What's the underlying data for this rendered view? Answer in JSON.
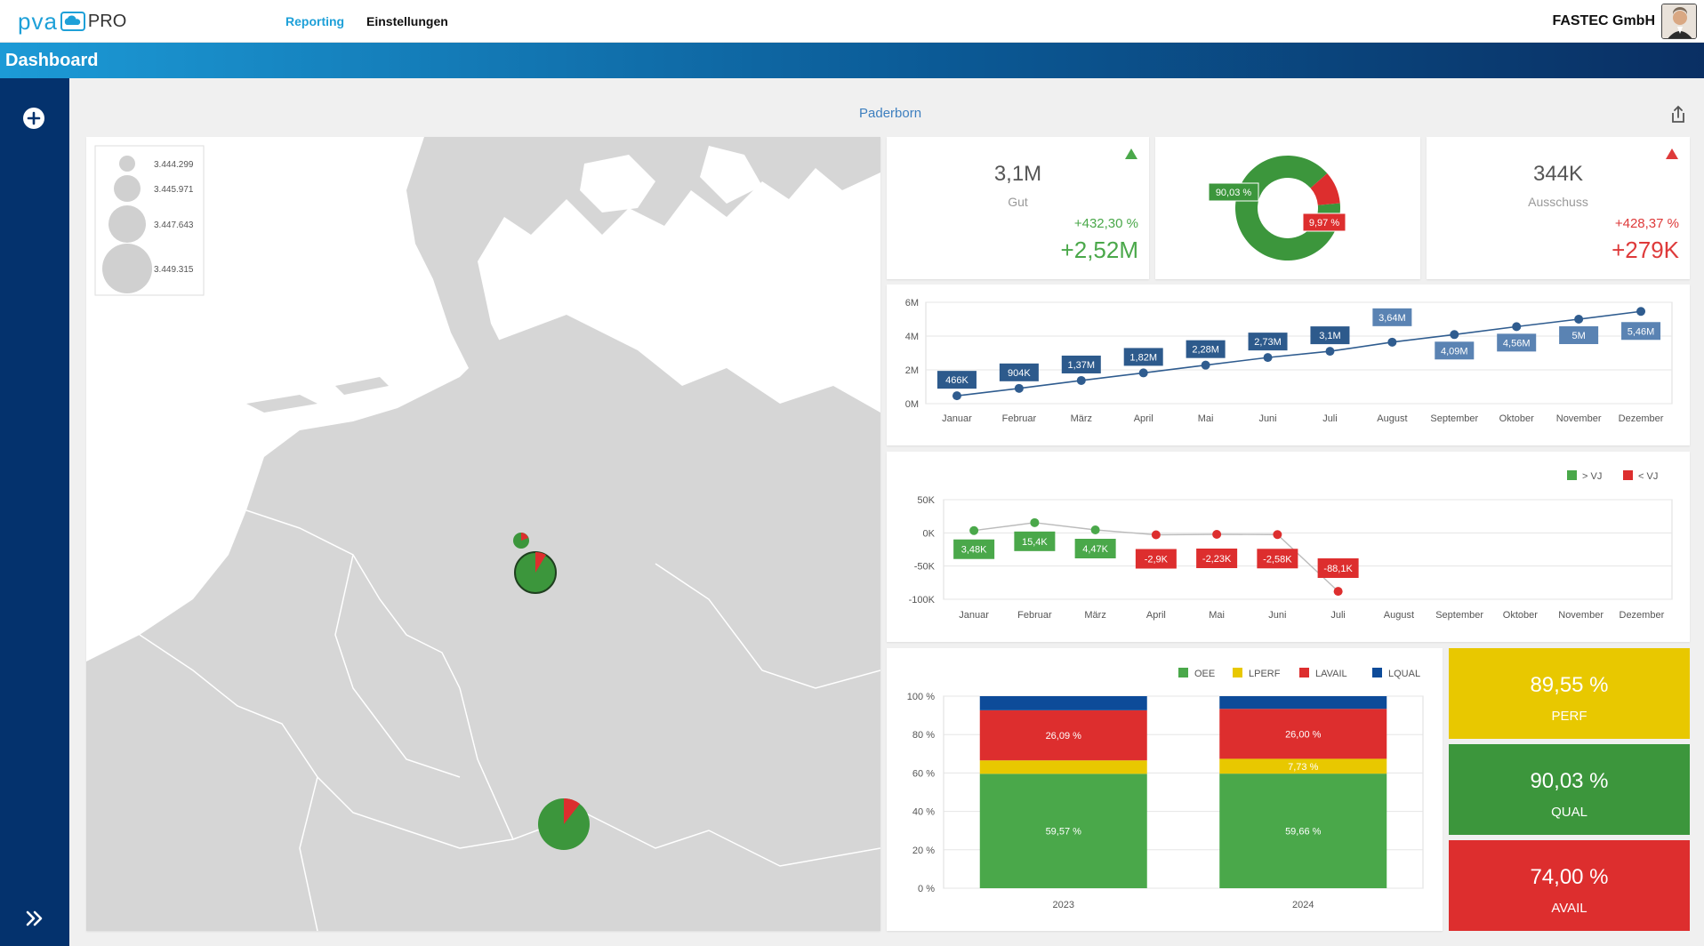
{
  "header": {
    "logo_pva": "pva",
    "logo_pro": "PRO",
    "nav": [
      "Reporting",
      "Einstellungen"
    ],
    "company": "FASTEC GmbH"
  },
  "page": {
    "title": "Dashboard",
    "location": "Paderborn"
  },
  "map": {
    "legend": [
      "3.444.299",
      "3.445.971",
      "3.447.643",
      "3.449.315"
    ]
  },
  "kpi_gut": {
    "value": "3,1M",
    "label": "Gut",
    "pct": "+432,30 %",
    "delta": "+2,52M",
    "trend": "up"
  },
  "kpi_ausschuss": {
    "value": "344K",
    "label": "Ausschuss",
    "pct": "+428,37 %",
    "delta": "+279K",
    "trend": "up"
  },
  "donut": {
    "good_label": "90,03 %",
    "bad_label": "9,97 %",
    "good": 90.03,
    "bad": 9.97,
    "colors": {
      "good": "#3c963c",
      "bad": "#dd2e2e"
    }
  },
  "tiles": [
    {
      "value": "89,55 %",
      "label": "PERF",
      "color": "#e8c800"
    },
    {
      "value": "90,03 %",
      "label": "QUAL",
      "color": "#3c963c"
    },
    {
      "value": "74,00 %",
      "label": "AVAIL",
      "color": "#dd2e2e"
    }
  ],
  "chart_data": [
    {
      "type": "line",
      "categories": [
        "Januar",
        "Februar",
        "März",
        "April",
        "Mai",
        "Juni",
        "Juli",
        "August",
        "September",
        "Oktober",
        "November",
        "Dezember"
      ],
      "values": [
        0.466,
        0.904,
        1.37,
        1.82,
        2.28,
        2.73,
        3.1,
        3.64,
        4.09,
        4.56,
        5.0,
        5.46
      ],
      "labels": [
        "466K",
        "904K",
        "1,37M",
        "1,82M",
        "2,28M",
        "2,73M",
        "3,1M",
        "3,64M",
        "4,09M",
        "4,56M",
        "5M",
        "5,46M"
      ],
      "yticks": [
        "6M",
        "4M",
        "2M",
        "0M"
      ],
      "ylim": [
        0,
        6
      ]
    },
    {
      "type": "line",
      "categories": [
        "Januar",
        "Februar",
        "März",
        "April",
        "Mai",
        "Juni",
        "Juli",
        "August",
        "September",
        "Oktober",
        "November",
        "Dezember"
      ],
      "values": [
        3.48,
        15.4,
        4.47,
        -2.9,
        -2.23,
        -2.58,
        -88.1
      ],
      "labels": [
        "3,48K",
        "15,4K",
        "4,47K",
        "-2,9K",
        "-2,23K",
        "-2,58K",
        "-88,1K"
      ],
      "yticks": [
        "50K",
        "0K",
        "-50K",
        "-100K"
      ],
      "ylim": [
        -100,
        50
      ],
      "legend": [
        "> VJ",
        "< VJ"
      ],
      "colors": {
        "pos": "#4aa84a",
        "neg": "#dd2e2e"
      }
    },
    {
      "type": "bar",
      "categories": [
        "2023",
        "2024"
      ],
      "series": [
        {
          "name": "OEE",
          "values": [
            59.57,
            59.66
          ],
          "labels": [
            "59,57 %",
            "59,66 %"
          ],
          "color": "#4aa84a"
        },
        {
          "name": "LPERF",
          "values": [
            7.0,
            7.73
          ],
          "labels": [
            "",
            "7,73 %"
          ],
          "color": "#e8c800"
        },
        {
          "name": "LAVAIL",
          "values": [
            26.09,
            26.0
          ],
          "labels": [
            "26,09 %",
            "26,00 %"
          ],
          "color": "#dd2e2e"
        },
        {
          "name": "LQUAL",
          "values": [
            7.34,
            6.61
          ],
          "labels": [
            "",
            ""
          ],
          "color": "#0d4b99"
        }
      ],
      "yticks": [
        "100 %",
        "80 %",
        "60 %",
        "40 %",
        "20 %",
        "0 %"
      ],
      "ylim": [
        0,
        100
      ]
    }
  ]
}
